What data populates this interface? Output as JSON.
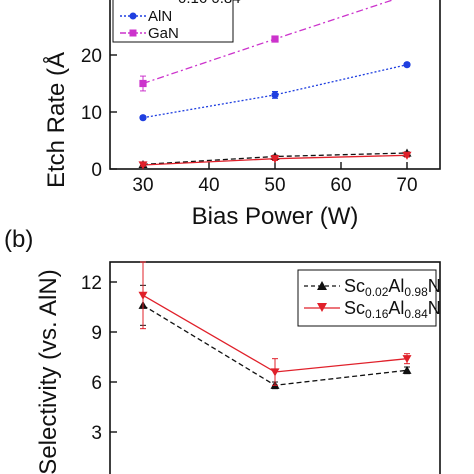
{
  "chart_data": [
    {
      "panel_label": "",
      "type": "line",
      "xlabel": "Bias Power (W)",
      "ylabel": "Etch Rate (Å",
      "x": [
        30,
        50,
        70
      ],
      "xlim": [
        25,
        75
      ],
      "xticks": [
        30,
        40,
        50,
        60,
        70
      ],
      "ylim": [
        0,
        30
      ],
      "yticks": [
        0,
        10,
        20
      ],
      "legend_placement": "top-left",
      "series": [
        {
          "name": "AlN",
          "values": [
            9.0,
            13.0,
            18.3
          ],
          "color": "#1f3fe0",
          "marker": "circle",
          "line": "dotted",
          "errors": [
            0.3,
            0.6,
            0.3
          ]
        },
        {
          "name": "GaN",
          "values": [
            15.0,
            22.8,
            30.5
          ],
          "color": "#cc33cc",
          "marker": "square",
          "line": "dashdot",
          "errors": [
            1.3,
            0.3,
            0.3
          ]
        },
        {
          "name": "",
          "values": [
            0.8,
            2.2,
            2.8
          ],
          "color": "#111111",
          "marker": "triangle-up",
          "line": "dashed",
          "errors": [
            0.2,
            0.2,
            0.2
          ]
        },
        {
          "name": "",
          "values": [
            0.7,
            1.8,
            2.4
          ],
          "color": "#e0202a",
          "marker": "triangle-down",
          "line": "solid",
          "errors": [
            0.2,
            0.3,
            0.3
          ]
        }
      ]
    },
    {
      "panel_label": "(b)",
      "type": "line",
      "xlabel": "",
      "ylabel": "Selectivity (vs. AlN)",
      "x": [
        30,
        50,
        70
      ],
      "xlim": [
        25,
        75
      ],
      "ylim": [
        0,
        13.2
      ],
      "yticks": [
        3,
        6,
        9,
        12
      ],
      "legend_placement": "top-right",
      "series": [
        {
          "name_main": "Sc",
          "name_sub1": "0.02",
          "name_mid": "Al",
          "name_sub2": "0.98",
          "name_end": "N",
          "values": [
            10.6,
            5.8,
            6.7
          ],
          "color": "#111111",
          "marker": "triangle-up",
          "line": "dashed",
          "errors": [
            1.2,
            0.2,
            0.2
          ]
        },
        {
          "name_main": "Sc",
          "name_sub1": "0.16",
          "name_mid": "Al",
          "name_sub2": "0.84",
          "name_end": "N",
          "values": [
            11.2,
            6.6,
            7.4
          ],
          "color": "#e0202a",
          "marker": "triangle-down",
          "line": "solid",
          "errors": [
            2.0,
            0.8,
            0.3
          ]
        }
      ]
    }
  ]
}
